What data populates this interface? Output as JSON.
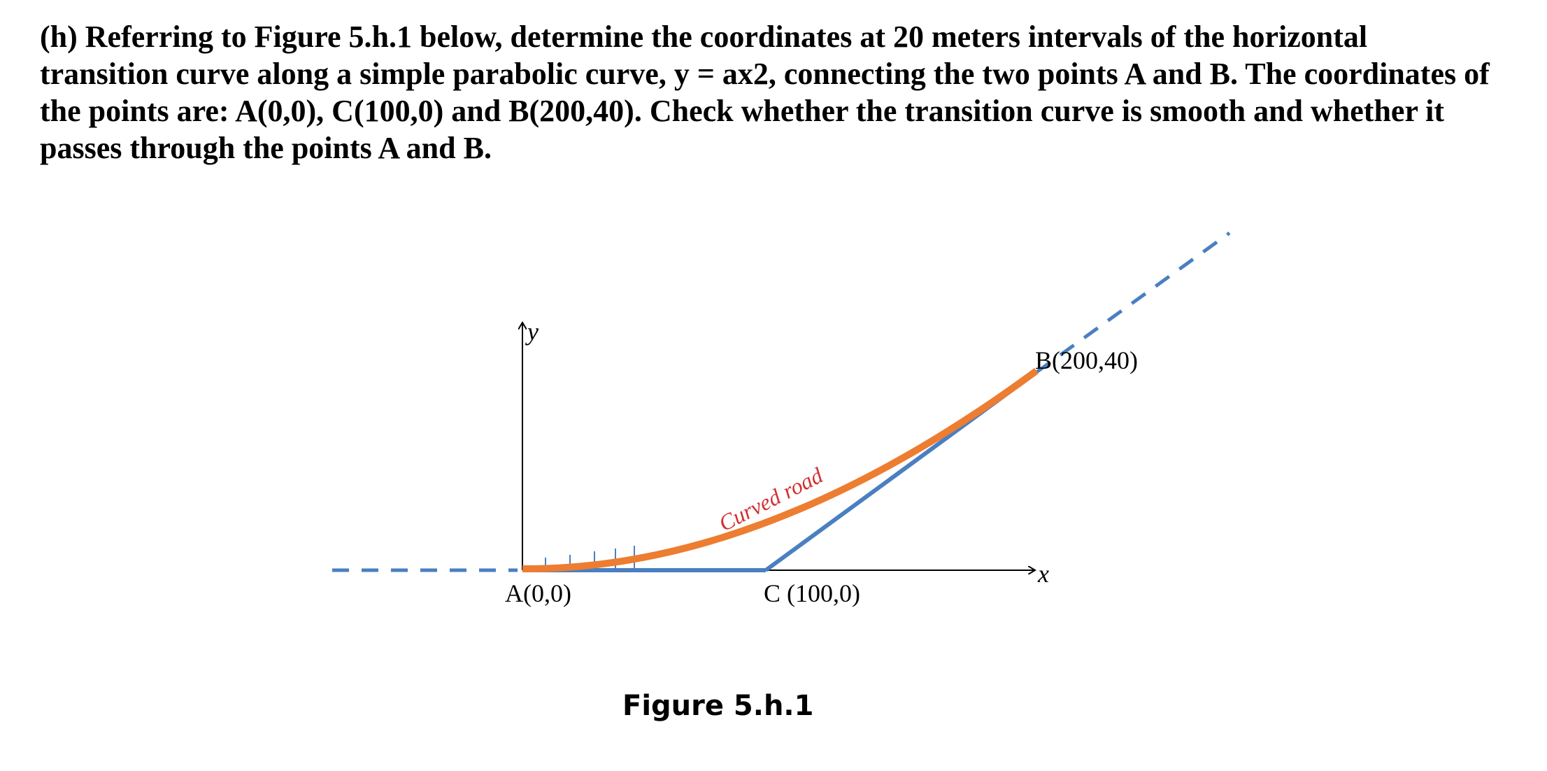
{
  "question": "(h) Referring to Figure 5.h.1 below, determine the coordinates at 20 meters intervals of the horizontal transition curve along a simple parabolic curve, y = ax2, connecting the two points A and B. The coordinates of the points are: A(0,0), C(100,0) and B(200,40). Check whether the transition curve is smooth and whether it passes through the points A and B.",
  "figure": {
    "y_axis_label": "y",
    "x_axis_label": "x",
    "point_a": "A(0,0)",
    "point_c": "C (100,0)",
    "point_b": "B(200,40)",
    "curve_label": "Curved road",
    "caption": "Figure 5.h.1"
  }
}
